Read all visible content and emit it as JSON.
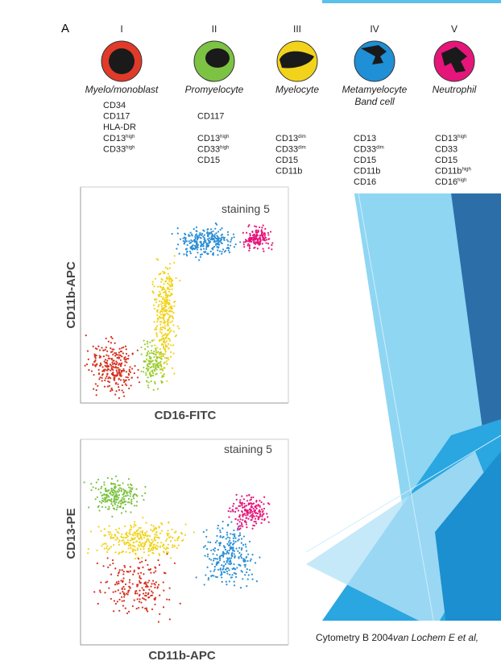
{
  "figure": {
    "panel": "A",
    "cells": [
      {
        "numeral": "I",
        "name": "Myelo/monoblast",
        "markers": [
          {
            "text": "CD34"
          },
          {
            "text": "CD117"
          },
          {
            "text": "HLA-DR"
          },
          {
            "text": "CD13",
            "sup": "high"
          },
          {
            "text": "CD33",
            "sup": "high"
          }
        ]
      },
      {
        "numeral": "II",
        "name": "Promyelocyte",
        "markers": [
          {
            "text": "CD117"
          },
          {
            "text": "CD13",
            "sup": "high"
          },
          {
            "text": "CD33",
            "sup": "high"
          },
          {
            "text": "CD15"
          }
        ]
      },
      {
        "numeral": "III",
        "name": "Myelocyte",
        "markers": [
          {
            "text": "CD13",
            "sup": "dim"
          },
          {
            "text": "CD33",
            "sup": "dim"
          },
          {
            "text": "CD15"
          },
          {
            "text": "CD11b"
          }
        ]
      },
      {
        "numeral": "IV",
        "name": "Metamyelocyte",
        "name2": "Band cell",
        "markers": [
          {
            "text": "CD13"
          },
          {
            "text": "CD33",
            "sup": "dim"
          },
          {
            "text": "CD15"
          },
          {
            "text": "CD11b"
          },
          {
            "text": "CD16"
          }
        ]
      },
      {
        "numeral": "V",
        "name": "Neutrophil",
        "markers": [
          {
            "text": "CD13",
            "sup": "high"
          },
          {
            "text": "CD33"
          },
          {
            "text": "CD15"
          },
          {
            "text": "CD11b",
            "sup": "high"
          },
          {
            "text": "CD16",
            "sup": "high"
          }
        ]
      }
    ],
    "plots": [
      {
        "label": "staining 5",
        "y_label": "CD11b-APC",
        "x_label": "CD16-FITC"
      },
      {
        "label": "staining 5",
        "y_label": "CD13-PE",
        "x_label": "CD11b-APC"
      }
    ]
  },
  "citation": {
    "text": "Cytometry B 2004",
    "authors": "van Lochem E et al,"
  }
}
